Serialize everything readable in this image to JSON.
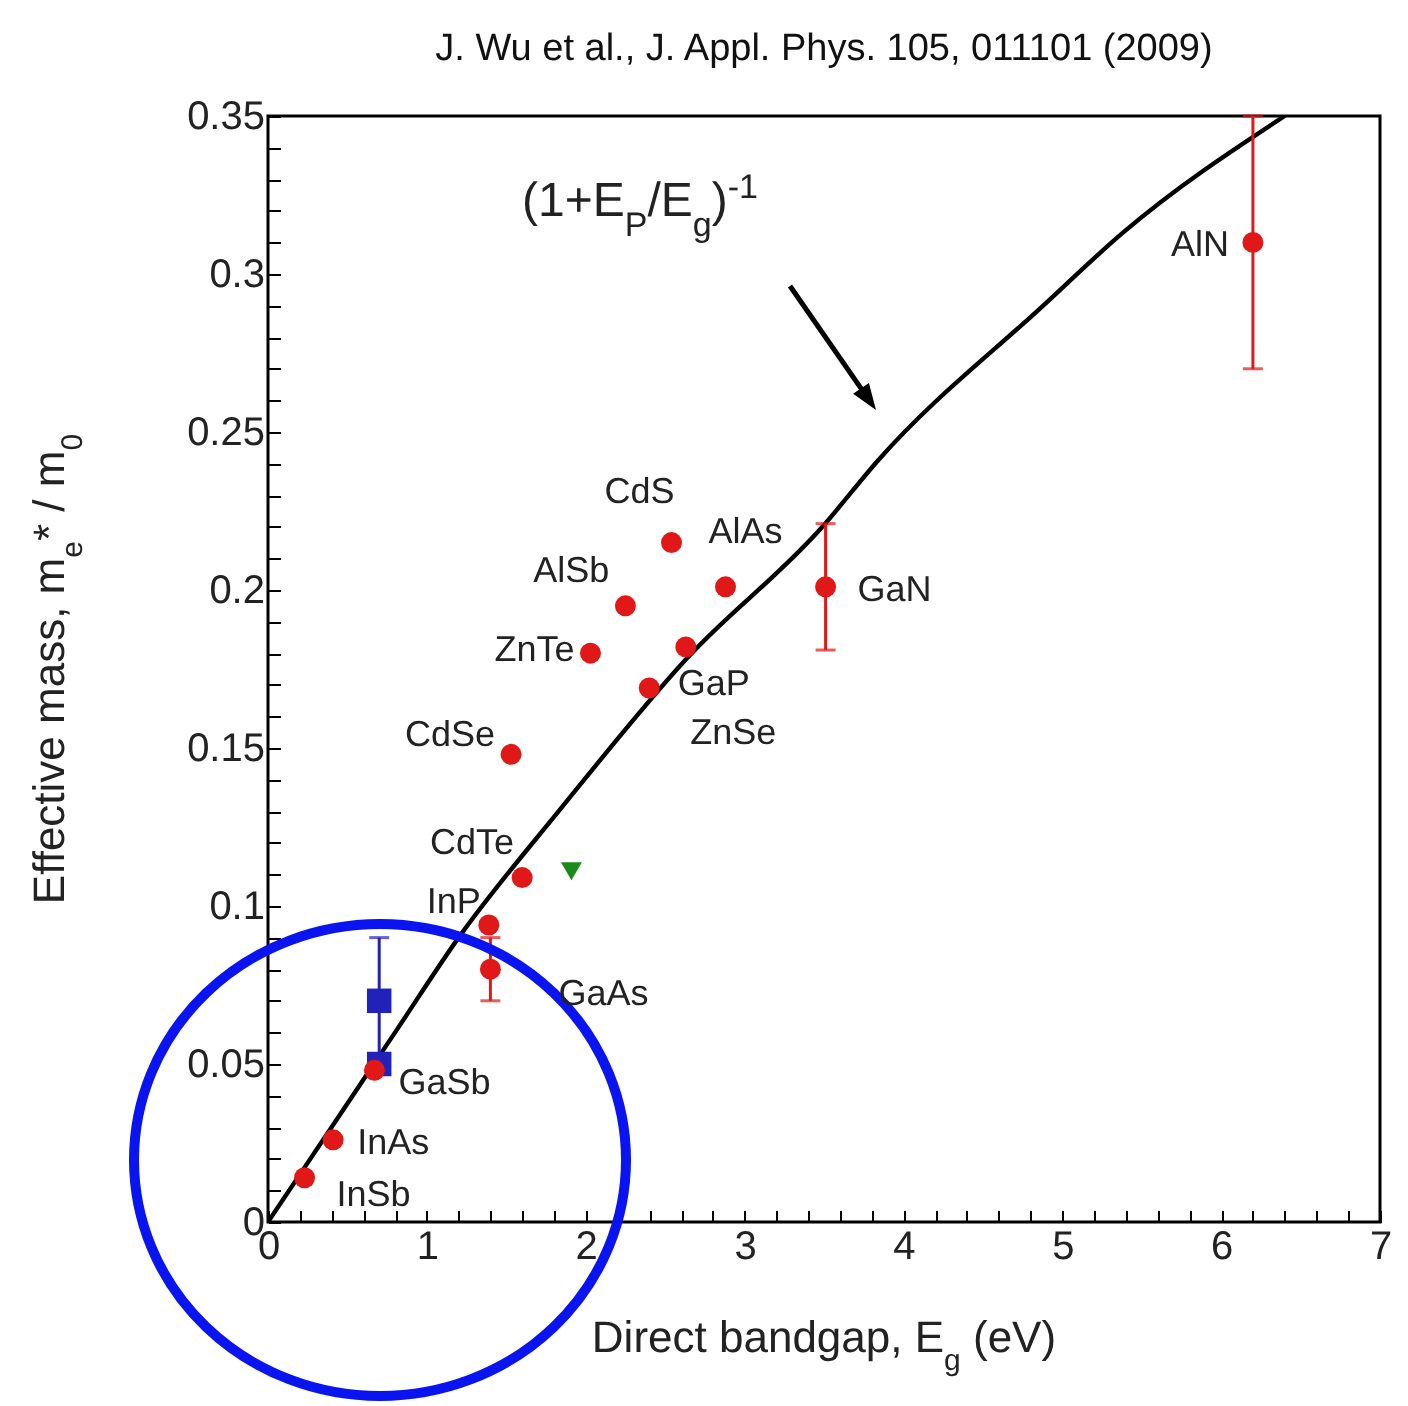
{
  "chart_data": {
    "type": "scatter",
    "title": "J. Wu et al., J. Appl. Phys. 105, 011101 (2009)",
    "xlabel": "Direct bandgap, E$_{g}$ (eV)",
    "ylabel": "Effective mass, m$_{e}$* / m$_{0}$",
    "xlim": [
      0,
      7
    ],
    "ylim": [
      0,
      0.35
    ],
    "xticks": [
      0,
      {
        "value": 0.2,
        "label": null
      },
      {
        "value": 0.4,
        "label": null
      },
      {
        "value": 0.6,
        "label": null
      },
      {
        "value": 0.8,
        "label": null
      },
      1,
      {
        "value": 1.2,
        "label": null
      },
      {
        "value": 1.4,
        "label": null
      },
      {
        "value": 1.6,
        "label": null
      },
      {
        "value": 1.8,
        "label": null
      },
      2,
      {
        "value": 2.2,
        "label": null
      },
      {
        "value": 2.4,
        "label": null
      },
      {
        "value": 2.6,
        "label": null
      },
      {
        "value": 2.8,
        "label": null
      },
      3,
      {
        "value": 3.2,
        "label": null
      },
      {
        "value": 3.4,
        "label": null
      },
      {
        "value": 3.6,
        "label": null
      },
      {
        "value": 3.8,
        "label": null
      },
      4,
      {
        "value": 4.2,
        "label": null
      },
      {
        "value": 4.4,
        "label": null
      },
      {
        "value": 4.6,
        "label": null
      },
      {
        "value": 4.8,
        "label": null
      },
      5,
      {
        "value": 5.2,
        "label": null
      },
      {
        "value": 5.4,
        "label": null
      },
      {
        "value": 5.6,
        "label": null
      },
      {
        "value": 5.8,
        "label": null
      },
      6,
      {
        "value": 6.2,
        "label": null
      },
      {
        "value": 6.4,
        "label": null
      },
      {
        "value": 6.6,
        "label": null
      },
      {
        "value": 6.8,
        "label": null
      },
      7
    ],
    "yticks": [
      0,
      {
        "value": 0.01,
        "label": null
      },
      {
        "value": 0.02,
        "label": null
      },
      {
        "value": 0.03,
        "label": null
      },
      {
        "value": 0.04,
        "label": null
      },
      0.05,
      {
        "value": 0.06,
        "label": null
      },
      {
        "value": 0.07,
        "label": null
      },
      {
        "value": 0.08,
        "label": null
      },
      {
        "value": 0.09,
        "label": null
      },
      0.1,
      {
        "value": 0.11,
        "label": null
      },
      {
        "value": 0.12,
        "label": null
      },
      {
        "value": 0.13,
        "label": null
      },
      {
        "value": 0.14,
        "label": null
      },
      0.15,
      {
        "value": 0.16,
        "label": null
      },
      {
        "value": 0.17,
        "label": null
      },
      {
        "value": 0.18,
        "label": null
      },
      {
        "value": 0.19,
        "label": null
      },
      0.2,
      {
        "value": 0.21,
        "label": null
      },
      {
        "value": 0.22,
        "label": null
      },
      {
        "value": 0.23,
        "label": null
      },
      {
        "value": 0.24,
        "label": null
      },
      0.25,
      {
        "value": 0.26,
        "label": null
      },
      {
        "value": 0.27,
        "label": null
      },
      {
        "value": 0.28,
        "label": null
      },
      {
        "value": 0.29,
        "label": null
      },
      0.3,
      {
        "value": 0.31,
        "label": null
      },
      {
        "value": 0.32,
        "label": null
      },
      {
        "value": 0.33,
        "label": null
      },
      {
        "value": 0.34,
        "label": null
      },
      0.35
    ],
    "grid": false,
    "series": [
      {
        "type": "line",
        "color": "#000000",
        "marker": "none",
        "x": [
          0,
          0.4,
          0.8,
          1.2,
          1.83,
          2.63,
          3.49,
          3.84,
          4.88,
          5.38,
          6.4
        ],
        "values": [
          0,
          0.03,
          0.06,
          0.09,
          0.13,
          0.178,
          0.22,
          0.241,
          0.29,
          0.313,
          0.35
        ]
      },
      {
        "type": "scatter",
        "color": "#2222bb",
        "marker": "square",
        "x": [
          0.7
        ],
        "values": [
          0.07
        ],
        "errors": [
          0.02
        ]
      },
      {
        "type": "scatter",
        "color": "#2222bb",
        "marker": "square",
        "x": [
          0.7
        ],
        "values": [
          0.05
        ]
      },
      {
        "type": "scatter",
        "color": "#1a8a1a",
        "marker": "triangle",
        "x": [
          1.91
        ],
        "values": [
          0.111
        ]
      },
      {
        "type": "scatter",
        "color": "#e01818",
        "marker": "circle",
        "x": [
          0.23,
          0.41,
          0.67,
          1.39,
          1.4,
          1.6,
          1.53,
          2.03,
          2.25,
          2.54,
          2.88,
          2.63,
          2.4,
          3.51,
          6.2
        ],
        "values": [
          0.014,
          0.026,
          0.048,
          0.094,
          0.08,
          0.109,
          0.148,
          0.18,
          0.195,
          0.215,
          0.201,
          0.182,
          0.169,
          0.201,
          0.31
        ],
        "errors": [
          null,
          null,
          null,
          null,
          0.01,
          null,
          null,
          null,
          null,
          null,
          null,
          null,
          null,
          0.02,
          0.04
        ]
      }
    ],
    "annotations": [
      "(1+E$_{P}$/E$_{g}$)$^{-1}$",
      {
        "text": "InSb",
        "x": 0.23,
        "y": 0.014
      },
      {
        "text": "InAs",
        "x": 0.41,
        "y": 0.026
      },
      {
        "text": "GaSb",
        "x": 0.67,
        "y": 0.048
      },
      {
        "text": "InP",
        "x": 1.39,
        "y": 0.094
      },
      {
        "text": "GaAs",
        "x": 1.4,
        "y": 0.08
      },
      {
        "text": "CdTe",
        "x": 1.6,
        "y": 0.109
      },
      {
        "text": "CdSe",
        "x": 1.53,
        "y": 0.148
      },
      {
        "text": "ZnTe",
        "x": 2.03,
        "y": 0.18
      },
      {
        "text": "AlSb",
        "x": 2.25,
        "y": 0.195
      },
      {
        "text": "CdS",
        "x": 2.54,
        "y": 0.215
      },
      {
        "text": "AlAs",
        "x": 2.88,
        "y": 0.201
      },
      {
        "text": "GaP",
        "x": 2.63,
        "y": 0.182
      },
      {
        "text": "ZnSe",
        "x": 2.4,
        "y": 0.169
      },
      {
        "text": "GaN",
        "x": 3.51,
        "y": 0.201
      },
      {
        "text": "AlN",
        "x": 6.2,
        "y": 0.31
      }
    ]
  }
}
